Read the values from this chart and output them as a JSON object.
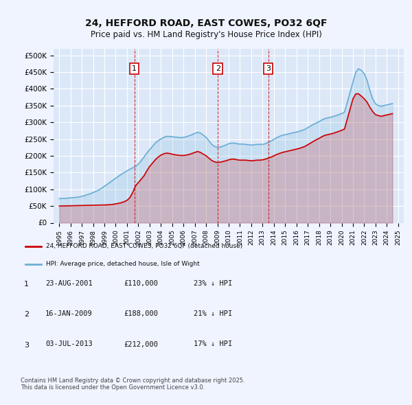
{
  "title": "24, HEFFORD ROAD, EAST COWES, PO32 6QF",
  "subtitle": "Price paid vs. HM Land Registry's House Price Index (HPI)",
  "background_color": "#f0f4ff",
  "plot_bg_color": "#dce8f8",
  "grid_color": "#ffffff",
  "hpi_color": "#6baed6",
  "price_color": "#cc0000",
  "vline_color": "#cc0000",
  "ylim": [
    0,
    520000
  ],
  "yticks": [
    0,
    50000,
    100000,
    150000,
    200000,
    250000,
    300000,
    350000,
    400000,
    450000,
    500000
  ],
  "ytick_labels": [
    "£0",
    "£50K",
    "£100K",
    "£150K",
    "£200K",
    "£250K",
    "£300K",
    "£350K",
    "£400K",
    "£450K",
    "£500K"
  ],
  "xlim_start": 1994.5,
  "xlim_end": 2025.5,
  "xticks": [
    1995,
    1996,
    1997,
    1998,
    1999,
    2000,
    2001,
    2002,
    2003,
    2004,
    2005,
    2006,
    2007,
    2008,
    2009,
    2010,
    2011,
    2012,
    2013,
    2014,
    2015,
    2016,
    2017,
    2018,
    2019,
    2020,
    2021,
    2022,
    2023,
    2024,
    2025
  ],
  "legend_label_price": "24, HEFFORD ROAD, EAST COWES, PO32 6QF (detached house)",
  "legend_label_hpi": "HPI: Average price, detached house, Isle of Wight",
  "transactions": [
    {
      "num": 1,
      "date": "23-AUG-2001",
      "price": 110000,
      "hpi_pct": "23% ↓ HPI",
      "x": 2001.645
    },
    {
      "num": 2,
      "date": "16-JAN-2009",
      "price": 188000,
      "hpi_pct": "21% ↓ HPI",
      "x": 2009.04
    },
    {
      "num": 3,
      "date": "03-JUL-2013",
      "price": 212000,
      "hpi_pct": "17% ↓ HPI",
      "x": 2013.5
    }
  ],
  "footnote": "Contains HM Land Registry data © Crown copyright and database right 2025.\nThis data is licensed under the Open Government Licence v3.0.",
  "hpi_data_x": [
    1995.0,
    1995.25,
    1995.5,
    1995.75,
    1996.0,
    1996.25,
    1996.5,
    1996.75,
    1997.0,
    1997.25,
    1997.5,
    1997.75,
    1998.0,
    1998.25,
    1998.5,
    1998.75,
    1999.0,
    1999.25,
    1999.5,
    1999.75,
    2000.0,
    2000.25,
    2000.5,
    2000.75,
    2001.0,
    2001.25,
    2001.5,
    2001.75,
    2002.0,
    2002.25,
    2002.5,
    2002.75,
    2003.0,
    2003.25,
    2003.5,
    2003.75,
    2004.0,
    2004.25,
    2004.5,
    2004.75,
    2005.0,
    2005.25,
    2005.5,
    2005.75,
    2006.0,
    2006.25,
    2006.5,
    2006.75,
    2007.0,
    2007.25,
    2007.5,
    2007.75,
    2008.0,
    2008.25,
    2008.5,
    2008.75,
    2009.0,
    2009.25,
    2009.5,
    2009.75,
    2010.0,
    2010.25,
    2010.5,
    2010.75,
    2011.0,
    2011.25,
    2011.5,
    2011.75,
    2012.0,
    2012.25,
    2012.5,
    2012.75,
    2013.0,
    2013.25,
    2013.5,
    2013.75,
    2014.0,
    2014.25,
    2014.5,
    2014.75,
    2015.0,
    2015.25,
    2015.5,
    2015.75,
    2016.0,
    2016.25,
    2016.5,
    2016.75,
    2017.0,
    2017.25,
    2017.5,
    2017.75,
    2018.0,
    2018.25,
    2018.5,
    2018.75,
    2019.0,
    2019.25,
    2019.5,
    2019.75,
    2020.0,
    2020.25,
    2020.5,
    2020.75,
    2021.0,
    2021.25,
    2021.5,
    2021.75,
    2022.0,
    2022.25,
    2022.5,
    2022.75,
    2023.0,
    2023.25,
    2023.5,
    2023.75,
    2024.0,
    2024.25,
    2024.5
  ],
  "hpi_data_y": [
    72000,
    72500,
    73000,
    73500,
    74500,
    75000,
    76000,
    77000,
    79000,
    81000,
    84000,
    87000,
    90000,
    94000,
    98000,
    103000,
    109000,
    115000,
    121000,
    127000,
    133000,
    139000,
    145000,
    150000,
    155000,
    160000,
    164000,
    168000,
    175000,
    185000,
    196000,
    208000,
    218000,
    228000,
    238000,
    245000,
    250000,
    255000,
    258000,
    258000,
    257000,
    256000,
    255000,
    254000,
    255000,
    257000,
    260000,
    263000,
    267000,
    270000,
    268000,
    262000,
    255000,
    245000,
    234000,
    228000,
    225000,
    226000,
    229000,
    232000,
    236000,
    238000,
    238000,
    236000,
    235000,
    235000,
    234000,
    233000,
    232000,
    233000,
    234000,
    234000,
    234000,
    236000,
    240000,
    244000,
    249000,
    254000,
    258000,
    261000,
    263000,
    265000,
    267000,
    269000,
    271000,
    273000,
    276000,
    279000,
    284000,
    289000,
    294000,
    298000,
    302000,
    307000,
    311000,
    313000,
    315000,
    317000,
    320000,
    323000,
    326000,
    330000,
    360000,
    390000,
    420000,
    450000,
    460000,
    455000,
    445000,
    425000,
    395000,
    370000,
    355000,
    350000,
    348000,
    350000,
    352000,
    354000,
    356000
  ],
  "price_data_x": [
    1995.0,
    1995.25,
    1995.5,
    1995.75,
    1996.0,
    1996.25,
    1996.5,
    1996.75,
    1997.0,
    1997.25,
    1997.5,
    1997.75,
    1998.0,
    1998.25,
    1998.5,
    1998.75,
    1999.0,
    1999.25,
    1999.5,
    1999.75,
    2000.0,
    2000.25,
    2000.5,
    2000.75,
    2001.0,
    2001.25,
    2001.5,
    2001.75,
    2002.0,
    2002.25,
    2002.5,
    2002.75,
    2003.0,
    2003.25,
    2003.5,
    2003.75,
    2004.0,
    2004.25,
    2004.5,
    2004.75,
    2005.0,
    2005.25,
    2005.5,
    2005.75,
    2006.0,
    2006.25,
    2006.5,
    2006.75,
    2007.0,
    2007.25,
    2007.5,
    2007.75,
    2008.0,
    2008.25,
    2008.5,
    2008.75,
    2009.0,
    2009.25,
    2009.5,
    2009.75,
    2010.0,
    2010.25,
    2010.5,
    2010.75,
    2011.0,
    2011.25,
    2011.5,
    2011.75,
    2012.0,
    2012.25,
    2012.5,
    2012.75,
    2013.0,
    2013.25,
    2013.5,
    2013.75,
    2014.0,
    2014.25,
    2014.5,
    2014.75,
    2015.0,
    2015.25,
    2015.5,
    2015.75,
    2016.0,
    2016.25,
    2016.5,
    2016.75,
    2017.0,
    2017.25,
    2017.5,
    2017.75,
    2018.0,
    2018.25,
    2018.5,
    2018.75,
    2019.0,
    2019.25,
    2019.5,
    2019.75,
    2020.0,
    2020.25,
    2020.5,
    2020.75,
    2021.0,
    2021.25,
    2021.5,
    2021.75,
    2022.0,
    2022.25,
    2022.5,
    2022.75,
    2023.0,
    2023.25,
    2023.5,
    2023.75,
    2024.0,
    2024.25,
    2024.5
  ],
  "price_data_y": [
    50000,
    50200,
    50400,
    50600,
    50800,
    51000,
    51200,
    51400,
    51600,
    51800,
    52000,
    52200,
    52400,
    52600,
    52800,
    53000,
    53200,
    53500,
    54000,
    55000,
    56500,
    58000,
    60000,
    63000,
    67000,
    75000,
    90000,
    110000,
    120000,
    130000,
    140000,
    155000,
    168000,
    178000,
    188000,
    196000,
    202000,
    206000,
    208000,
    207000,
    205000,
    203000,
    202000,
    201000,
    201000,
    202000,
    204000,
    207000,
    210000,
    213000,
    210000,
    205000,
    200000,
    193000,
    186000,
    182000,
    180000,
    181000,
    183000,
    185000,
    188000,
    190000,
    190000,
    188000,
    187000,
    187000,
    187000,
    186000,
    185000,
    186000,
    187000,
    187000,
    188000,
    190000,
    193000,
    196000,
    200000,
    204000,
    207000,
    210000,
    212000,
    214000,
    216000,
    218000,
    220000,
    222000,
    225000,
    228000,
    233000,
    238000,
    243000,
    248000,
    252000,
    257000,
    261000,
    263000,
    265000,
    267000,
    270000,
    273000,
    276000,
    280000,
    310000,
    340000,
    370000,
    385000,
    385000,
    378000,
    370000,
    360000,
    345000,
    332000,
    323000,
    320000,
    318000,
    320000,
    322000,
    324000,
    326000
  ]
}
